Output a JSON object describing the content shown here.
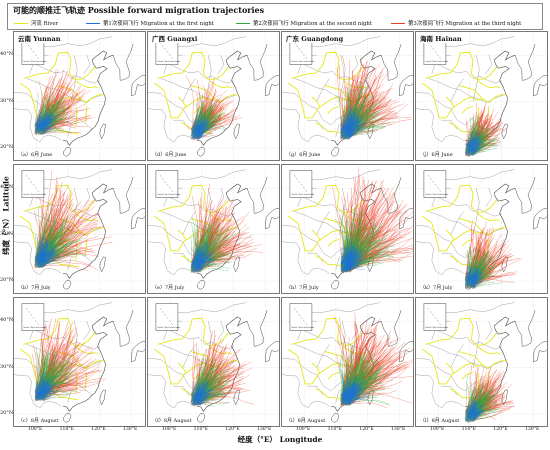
{
  "legend": {
    "title": "可能的顺推迁飞轨迹 Possible forward migration trajectories",
    "items": [
      {
        "label": "河流 River",
        "color": "#e6e61a"
      },
      {
        "label": "第1次夜间飞行 Migration at the first night",
        "color": "#1f6fd6"
      },
      {
        "label": "第2次夜间飞行 Migration at the second night",
        "color": "#2faa3c"
      },
      {
        "label": "第3次夜间飞行 Migration at the third night",
        "color": "#ee3b22"
      }
    ]
  },
  "axes": {
    "ylabel": "纬度（°N） Latitude",
    "xlabel": "经度（°E） Longitude",
    "lat_ticks": [
      "40°N",
      "30°N",
      "20°N"
    ],
    "lon_ticks": [
      "100°E",
      "110°E",
      "120°E",
      "130°E"
    ]
  },
  "columns": [
    "云南 Yunnan",
    "广西 Guangxi",
    "广东 Guangdong",
    "海南 Hainan"
  ],
  "colors": {
    "river": "#e6e61a",
    "coast": "#4a4a4a",
    "border": "#8a8a8a",
    "night1": "#1f6fd6",
    "night2": "#2faa3c",
    "night3": "#ee3b22"
  },
  "inset_text": "South China Sea Islands",
  "panels": [
    {
      "label": "（a）6月 June",
      "source": [
        101,
        24
      ],
      "bearing": 45,
      "spread": 28,
      "reach": [
        5,
        10,
        15
      ],
      "count": 150
    },
    {
      "label": "（d）6月 June",
      "source": [
        108,
        23
      ],
      "bearing": 42,
      "spread": 24,
      "reach": [
        5,
        9,
        13
      ],
      "count": 150
    },
    {
      "label": "（g）6月 June",
      "source": [
        113,
        23
      ],
      "bearing": 40,
      "spread": 30,
      "reach": [
        6,
        12,
        18
      ],
      "count": 190
    },
    {
      "label": "（j）6月 June",
      "source": [
        110,
        19.5
      ],
      "bearing": 42,
      "spread": 26,
      "reach": [
        4,
        8,
        11
      ],
      "count": 150
    },
    {
      "label": "（b）7月 July",
      "source": [
        101,
        24
      ],
      "bearing": 42,
      "spread": 30,
      "reach": [
        6,
        13,
        20
      ],
      "count": 170
    },
    {
      "label": "（e）7月 July",
      "source": [
        108,
        23
      ],
      "bearing": 42,
      "spread": 26,
      "reach": [
        6,
        12,
        18
      ],
      "count": 170
    },
    {
      "label": "（h）7月 July",
      "source": [
        113,
        23
      ],
      "bearing": 38,
      "spread": 30,
      "reach": [
        6,
        14,
        22
      ],
      "count": 210
    },
    {
      "label": "（k）7月 July",
      "source": [
        110,
        19.5
      ],
      "bearing": 40,
      "spread": 26,
      "reach": [
        4,
        9,
        14
      ],
      "count": 160
    },
    {
      "label": "（c）8月 August",
      "source": [
        101,
        24
      ],
      "bearing": 40,
      "spread": 30,
      "reach": [
        5,
        12,
        18
      ],
      "count": 170
    },
    {
      "label": "（f）8月 August",
      "source": [
        108,
        23
      ],
      "bearing": 45,
      "spread": 26,
      "reach": [
        5,
        11,
        16
      ],
      "count": 170
    },
    {
      "label": "（i）8月 August",
      "source": [
        113,
        23
      ],
      "bearing": 40,
      "spread": 30,
      "reach": [
        6,
        13,
        20
      ],
      "count": 210
    },
    {
      "label": "（l）8月 August",
      "source": [
        110,
        19.5
      ],
      "bearing": 45,
      "spread": 24,
      "reach": [
        4,
        9,
        13
      ],
      "count": 160
    }
  ]
}
